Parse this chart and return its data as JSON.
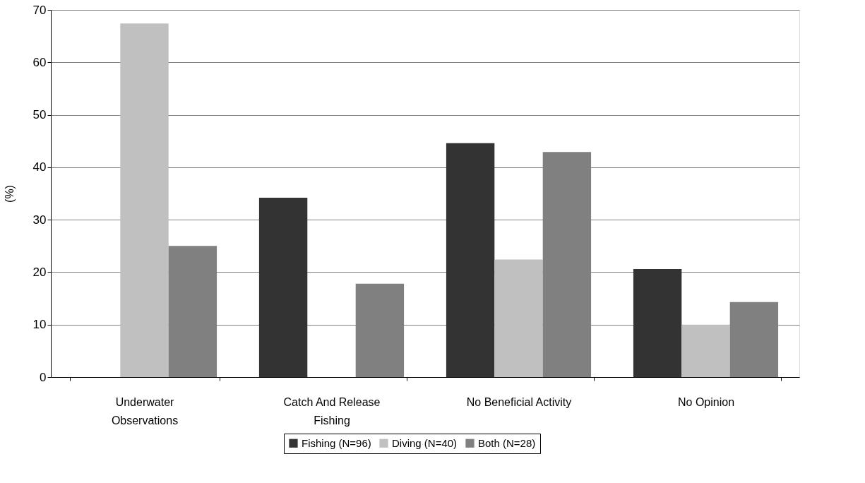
{
  "chart_data": {
    "type": "bar",
    "ylabel": "(%)",
    "categories": [
      "Underwater\nObservations",
      "Catch And Release\nFishing",
      "No Beneficial Activity",
      "No Opinion"
    ],
    "series": [
      {
        "name": "Fishing (N=96)",
        "color": "#333333",
        "values": [
          0,
          34.2,
          44.6,
          20.6
        ]
      },
      {
        "name": "Diving (N=40)",
        "color": "#c0c0c0",
        "values": [
          67.4,
          0,
          22.4,
          10.0
        ]
      },
      {
        "name": "Both (N=28)",
        "color": "#808080",
        "values": [
          25.0,
          17.8,
          42.9,
          14.3
        ]
      }
    ],
    "ylim": [
      0,
      70
    ],
    "yticks": [
      0,
      10,
      20,
      30,
      40,
      50,
      60,
      70
    ],
    "grid": "y",
    "legend": "bottom"
  }
}
